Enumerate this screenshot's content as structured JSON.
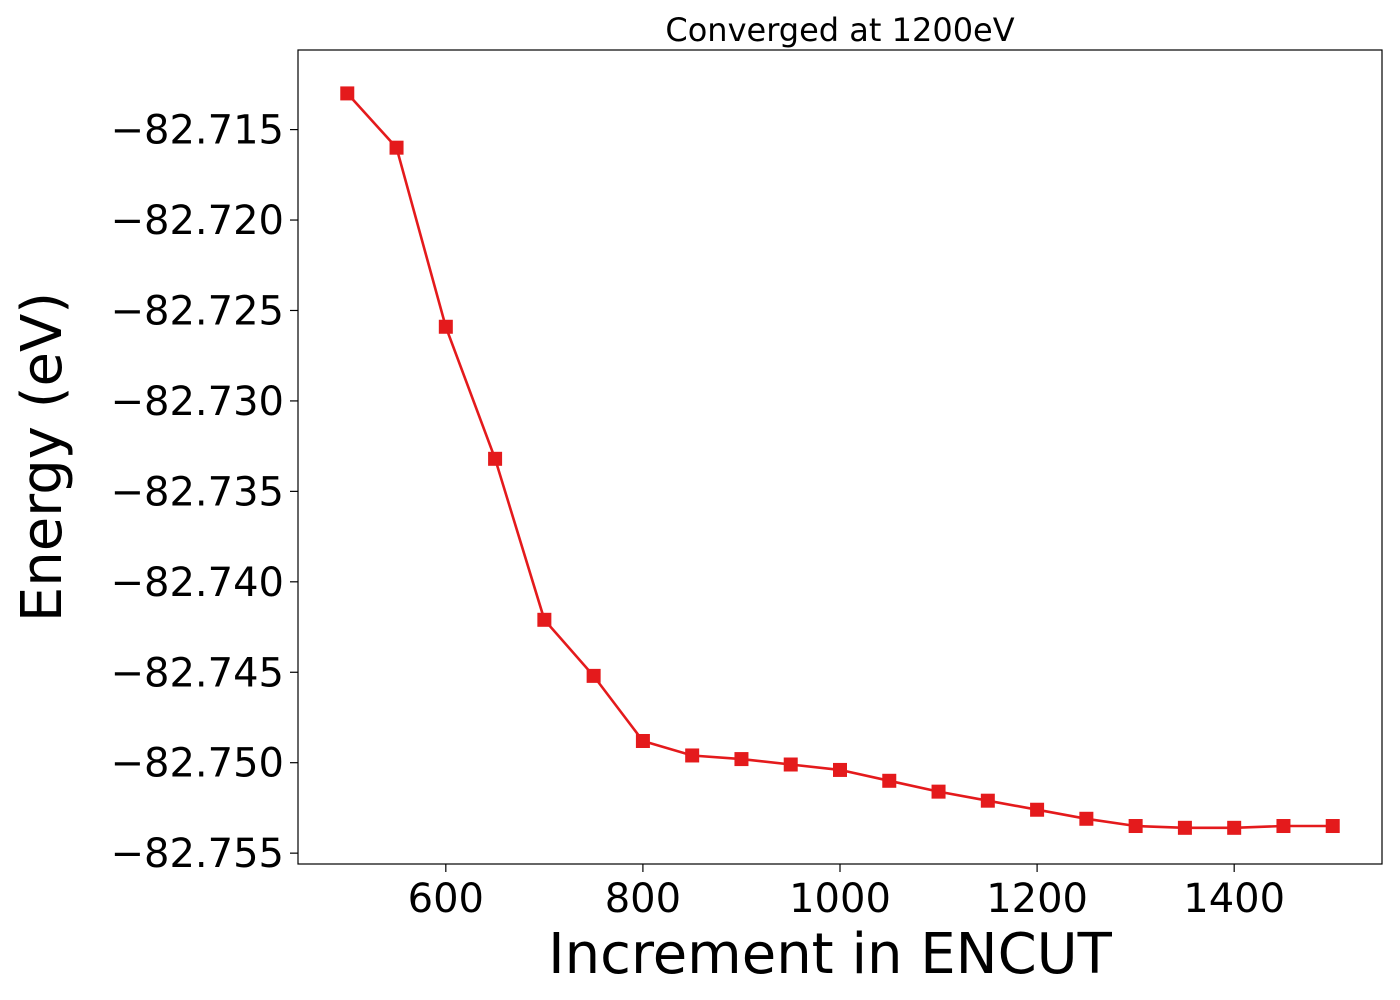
{
  "chart_data": {
    "type": "line",
    "title": "Converged at 1200eV",
    "xlabel": "Increment in ENCUT",
    "ylabel": "Energy (eV)",
    "xlim": [
      450,
      1550
    ],
    "ylim": [
      -82.7556,
      -82.7106
    ],
    "xticks": [
      600,
      800,
      1000,
      1200,
      1400
    ],
    "xtick_labels": [
      "600",
      "800",
      "1000",
      "1200",
      "1400"
    ],
    "yticks": [
      -82.715,
      -82.72,
      -82.725,
      -82.73,
      -82.735,
      -82.74,
      -82.745,
      -82.75,
      -82.755
    ],
    "ytick_labels": [
      "−82.715",
      "−82.720",
      "−82.725",
      "−82.730",
      "−82.735",
      "−82.740",
      "−82.745",
      "−82.750",
      "−82.755"
    ],
    "grid": false,
    "series": [
      {
        "color": "#e41a1c",
        "marker": "square",
        "x": [
          500,
          550,
          600,
          650,
          700,
          750,
          800,
          850,
          900,
          950,
          1000,
          1050,
          1100,
          1150,
          1200,
          1250,
          1300,
          1350,
          1400,
          1450,
          1500
        ],
        "values": [
          -82.713,
          -82.716,
          -82.7259,
          -82.7332,
          -82.7421,
          -82.7452,
          -82.7488,
          -82.7496,
          -82.7498,
          -82.7501,
          -82.7504,
          -82.751,
          -82.7516,
          -82.7521,
          -82.7526,
          -82.7531,
          -82.7535,
          -82.7536,
          -82.7536,
          -82.7535,
          -82.7535
        ]
      }
    ]
  }
}
